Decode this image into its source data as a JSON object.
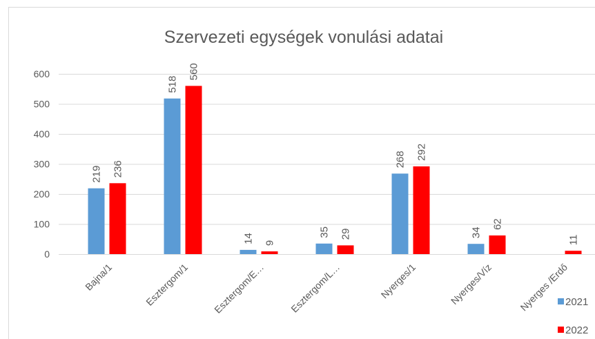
{
  "chart_data": {
    "type": "bar",
    "title": "Szervezeti egységek vonulási adatai",
    "categories": [
      "Bajna/1",
      "Esztergom/1",
      "Esztergom/E…",
      "Esztergom/L…",
      "Nyerges/1",
      "Nyerges/Víz",
      "Nyerges /Erdő"
    ],
    "series": [
      {
        "name": "2021",
        "color": "#5b9bd5",
        "values": [
          219,
          518,
          14,
          35,
          268,
          34,
          null
        ]
      },
      {
        "name": "2022",
        "color": "#ff0000",
        "values": [
          236,
          560,
          9,
          29,
          292,
          62,
          11
        ]
      }
    ],
    "ylim": [
      0,
      600
    ],
    "yticks": [
      0,
      100,
      200,
      300,
      400,
      500,
      600
    ],
    "grid": true,
    "legend": "right"
  }
}
